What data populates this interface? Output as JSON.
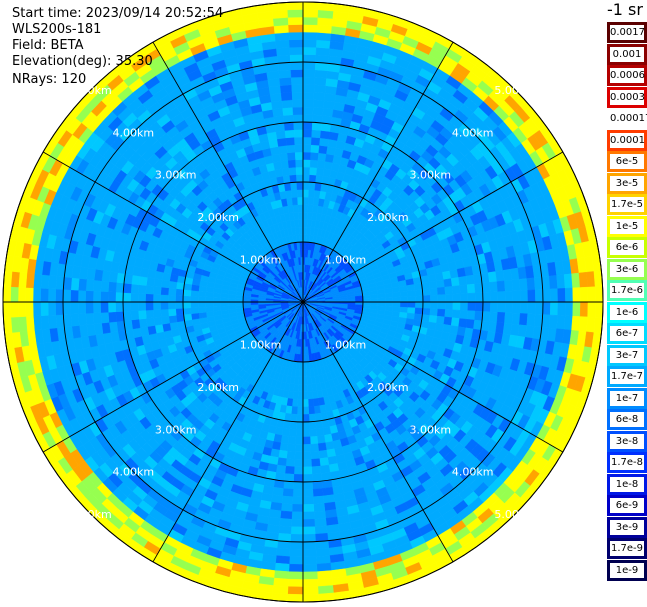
{
  "info": {
    "start_time": "Start time: 2023/09/14 20:52:54",
    "station": "WLS200s-181",
    "field": "Field: BETA",
    "elevation": "Elevation(deg): 35.30",
    "nrays": "NRays: 120"
  },
  "colorbar": {
    "title": "-1 sr",
    "labels": [
      "0.0017",
      "0.001",
      "0.0006",
      "0.0003",
      "0.00017",
      "0.0001",
      "6e-5",
      "3e-5",
      "1.7e-5",
      "1e-5",
      "6e-6",
      "3e-6",
      "1.7e-6",
      "1e-6",
      "6e-7",
      "3e-7",
      "1.7e-7",
      "1e-7",
      "6e-8",
      "3e-8",
      "1.7e-8",
      "1e-8",
      "6e-9",
      "3e-9",
      "1.7e-9",
      "1e-9"
    ],
    "colors": [
      "#5a0000",
      "#8b0000",
      "#b40000",
      "#dc0000",
      "#ffffff",
      "#ff3c00",
      "#ff7800",
      "#ffa500",
      "#ffd200",
      "#ffff00",
      "#c8ff00",
      "#96ff50",
      "#50ffb4",
      "#00ffff",
      "#00dcff",
      "#00c8ff",
      "#00aaff",
      "#008cff",
      "#0070ff",
      "#0050ff",
      "#0030ff",
      "#0018e6",
      "#0000c8",
      "#00009b",
      "#00006e",
      "#000050"
    ]
  },
  "chart_data": {
    "type": "heatmap",
    "projection": "polar PPI",
    "field": "BETA",
    "n_rays": 120,
    "range_rings_km": [
      1,
      2,
      3,
      4,
      5
    ],
    "range_labels": [
      "1.00km",
      "2.00km",
      "3.00km",
      "4.00km",
      "5.00km"
    ],
    "max_range_km": 5.0,
    "radial_lines_deg": [
      0,
      30,
      60,
      90,
      120,
      150,
      180,
      210,
      240,
      270,
      300,
      330
    ],
    "radial_profile": [
      {
        "range_km": 0.0,
        "value": "3e-8"
      },
      {
        "range_km": 1.0,
        "value": "1.7e-7"
      },
      {
        "range_km": 3.5,
        "value": "1.7e-7"
      },
      {
        "range_km": 4.5,
        "value": "3e-7"
      },
      {
        "range_km": 4.7,
        "value": "1e-5"
      }
    ]
  }
}
